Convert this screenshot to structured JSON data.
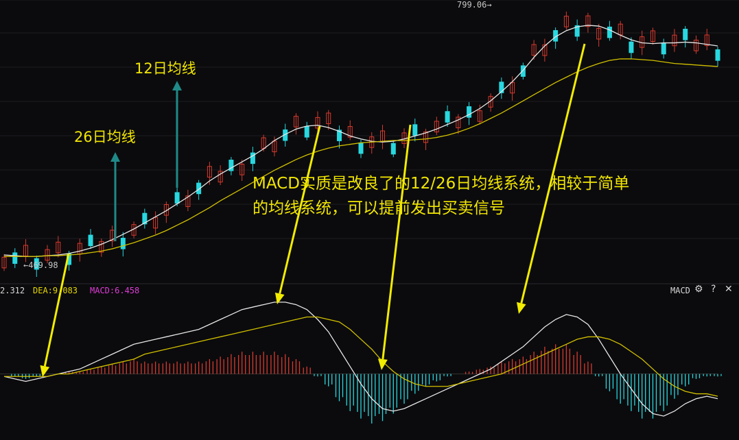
{
  "annotations": {
    "ma12_label": "12日均线",
    "ma26_label": "26日均线",
    "note_line1": "MACD实质是改良了的12/26日均线系统，相较于简单",
    "note_line2": "的均线系统，可以提前发出买卖信号"
  },
  "price_labels": {
    "high": "799.06→",
    "low": "←469.98"
  },
  "indicator_bar": {
    "dif": "2.312",
    "dea": "DEA:9.083",
    "macd": "MACD:6.458",
    "name": "MACD"
  },
  "toolbar": {
    "settings_icon": "gear-icon",
    "help_icon": "question-icon",
    "close_icon": "close-icon"
  },
  "colors": {
    "up": "#d83a2e",
    "down": "#28d8e0",
    "ma12": "#e8e8e8",
    "ma26": "#d2c000",
    "dif": "#e8e8e8",
    "dea": "#d2c000",
    "arrow": "#f2ec00",
    "teal_arrow": "#1f8a88"
  },
  "chart_data": [
    {
      "type": "candlestick",
      "title": "",
      "y_high_marked": 799.06,
      "y_low_marked": 469.98,
      "series": [
        {
          "name": "12日均线",
          "values": [
            478,
            477,
            476,
            476,
            477,
            478,
            480,
            483,
            487,
            492,
            498,
            505,
            512,
            520,
            528,
            536,
            545,
            554,
            564,
            575,
            584,
            592,
            600,
            608,
            617,
            628,
            636,
            643,
            647,
            648,
            645,
            640,
            634,
            630,
            627,
            626,
            627,
            630,
            634,
            638,
            643,
            649,
            655,
            662,
            670,
            680,
            692,
            705,
            720,
            737,
            752,
            764,
            772,
            777,
            779,
            778,
            773,
            766,
            760,
            756,
            755,
            756,
            756,
            757,
            756,
            754,
            752
          ]
        },
        {
          "name": "26日均线",
          "values": [
            476,
            476,
            476,
            476,
            477,
            477,
            478,
            479,
            481,
            483,
            486,
            490,
            494,
            499,
            504,
            510,
            517,
            524,
            532,
            540,
            549,
            557,
            565,
            573,
            581,
            589,
            596,
            603,
            609,
            614,
            618,
            621,
            623,
            625,
            626,
            627,
            628,
            628,
            629,
            630,
            632,
            635,
            639,
            644,
            650,
            657,
            664,
            672,
            680,
            688,
            696,
            704,
            711,
            718,
            724,
            729,
            733,
            735,
            735,
            734,
            733,
            731,
            729,
            728,
            727,
            726,
            725
          ]
        }
      ]
    },
    {
      "type": "line",
      "title": "MACD",
      "series": [
        {
          "name": "DIF",
          "values": [
            -1,
            -2,
            -3,
            -2,
            -1,
            0,
            1,
            2,
            4,
            6,
            8,
            10,
            12,
            13,
            14,
            15,
            16,
            17,
            18,
            20,
            22,
            24,
            26,
            27,
            28,
            29,
            29,
            28,
            26,
            22,
            17,
            10,
            3,
            -4,
            -10,
            -14,
            -15,
            -14,
            -12,
            -10,
            -8,
            -6,
            -4,
            -2,
            0,
            2,
            5,
            8,
            11,
            15,
            19,
            22,
            24,
            23,
            20,
            14,
            7,
            0,
            -6,
            -12,
            -16,
            -17,
            -15,
            -12,
            -10,
            -9,
            -10
          ]
        },
        {
          "name": "DEA",
          "values": [
            -1,
            -1,
            -1,
            -1,
            -1,
            0,
            0,
            1,
            2,
            3,
            4,
            5,
            6,
            8,
            9,
            10,
            11,
            12,
            13,
            14,
            15,
            16,
            17,
            18,
            19,
            20,
            21,
            22,
            23,
            23,
            22,
            21,
            18,
            14,
            10,
            5,
            1,
            -2,
            -4,
            -5,
            -5,
            -5,
            -4,
            -3,
            -2,
            -1,
            0,
            2,
            4,
            6,
            8,
            10,
            12,
            14,
            15,
            15,
            14,
            12,
            9,
            6,
            2,
            -2,
            -5,
            -7,
            -8,
            -8,
            -9
          ]
        },
        {
          "name": "MACD",
          "values": [
            0,
            -1,
            -2,
            -1,
            0,
            0,
            1,
            1,
            2,
            3,
            4,
            5,
            6,
            5,
            5,
            5,
            5,
            5,
            5,
            6,
            7,
            8,
            9,
            9,
            9,
            9,
            8,
            6,
            3,
            -1,
            -5,
            -11,
            -15,
            -18,
            -20,
            -19,
            -16,
            -12,
            -8,
            -5,
            -3,
            -1,
            0,
            1,
            2,
            3,
            5,
            6,
            7,
            9,
            11,
            12,
            12,
            9,
            5,
            -1,
            -7,
            -12,
            -15,
            -18,
            -18,
            -15,
            -10,
            -5,
            -2,
            -1,
            -1
          ]
        }
      ]
    }
  ]
}
